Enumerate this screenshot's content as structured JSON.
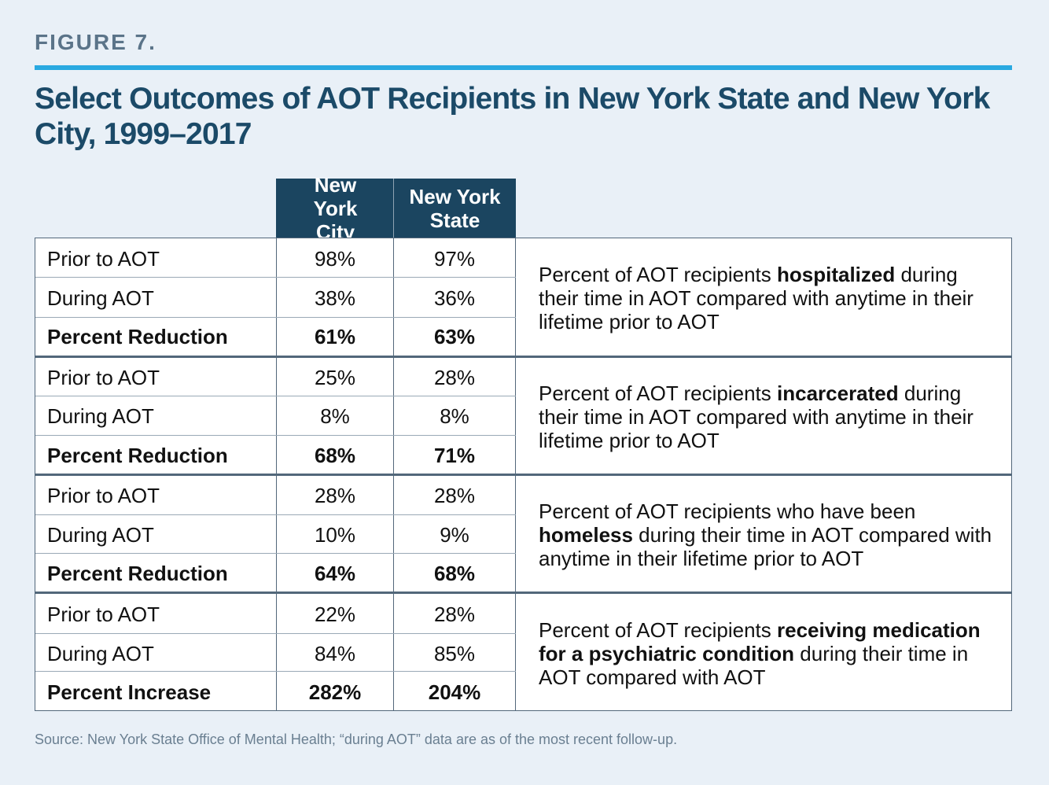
{
  "figure_label": "FIGURE 7.",
  "title": "Select Outcomes of AOT Recipients in New York State and New York City, 1999–2017",
  "columns": [
    "New York City",
    "New York State"
  ],
  "groups": [
    {
      "rows": [
        {
          "label": "Prior to AOT",
          "nyc": "98%",
          "nys": "97%"
        },
        {
          "label": "During AOT",
          "nyc": "38%",
          "nys": "36%"
        },
        {
          "label": "Percent Reduction",
          "nyc": "61%",
          "nys": "63%"
        }
      ],
      "desc": {
        "before": "Percent of AOT recipients ",
        "bold": "hospitalized",
        "after": " during their time in AOT compared with anytime in their lifetime prior to AOT"
      }
    },
    {
      "rows": [
        {
          "label": "Prior to AOT",
          "nyc": "25%",
          "nys": "28%"
        },
        {
          "label": "During AOT",
          "nyc": "8%",
          "nys": "8%"
        },
        {
          "label": "Percent Reduction",
          "nyc": "68%",
          "nys": "71%"
        }
      ],
      "desc": {
        "before": "Percent of AOT recipients ",
        "bold": "incarcerated",
        "after": " during their time in AOT compared with anytime in their lifetime prior to AOT"
      }
    },
    {
      "rows": [
        {
          "label": "Prior to AOT",
          "nyc": "28%",
          "nys": "28%"
        },
        {
          "label": "During AOT",
          "nyc": "10%",
          "nys": "9%"
        },
        {
          "label": "Percent Reduction",
          "nyc": "64%",
          "nys": "68%"
        }
      ],
      "desc": {
        "before": "Percent of AOT recipients who have been ",
        "bold": "homeless",
        "after": " during their time in AOT compared with anytime in their lifetime prior to AOT"
      }
    },
    {
      "rows": [
        {
          "label": "Prior to AOT",
          "nyc": "22%",
          "nys": "28%"
        },
        {
          "label": "During AOT",
          "nyc": "84%",
          "nys": "85%"
        },
        {
          "label": "Percent Increase",
          "nyc": "282%",
          "nys": "204%"
        }
      ],
      "desc": {
        "before": "Percent of AOT recipients ",
        "bold": "receiving medication for a psychiatric condition",
        "after": " during their time in AOT compared with AOT"
      }
    }
  ],
  "source": "Source: New York State Office of Mental Health; “during AOT” data are as of the most recent follow-up.",
  "colors": {
    "background": "#e9f0f7",
    "accent_rule": "#29a9e1",
    "title": "#1b4a68",
    "header_fill": "#1b4560",
    "label_gray": "#5b7489"
  },
  "chart_data": {
    "type": "table",
    "title": "Select Outcomes of AOT Recipients in New York State and New York City, 1999–2017",
    "columns": [
      "New York City",
      "New York State"
    ],
    "sections": [
      {
        "outcome": "hospitalized",
        "prior": [
          98,
          97
        ],
        "during": [
          38,
          36
        ],
        "change_label": "Percent Reduction",
        "change": [
          61,
          63
        ]
      },
      {
        "outcome": "incarcerated",
        "prior": [
          25,
          28
        ],
        "during": [
          8,
          8
        ],
        "change_label": "Percent Reduction",
        "change": [
          68,
          71
        ]
      },
      {
        "outcome": "homeless",
        "prior": [
          28,
          28
        ],
        "during": [
          10,
          9
        ],
        "change_label": "Percent Reduction",
        "change": [
          64,
          68
        ]
      },
      {
        "outcome": "receiving medication for a psychiatric condition",
        "prior": [
          22,
          28
        ],
        "during": [
          84,
          85
        ],
        "change_label": "Percent Increase",
        "change": [
          282,
          204
        ]
      }
    ],
    "units": "percent"
  }
}
